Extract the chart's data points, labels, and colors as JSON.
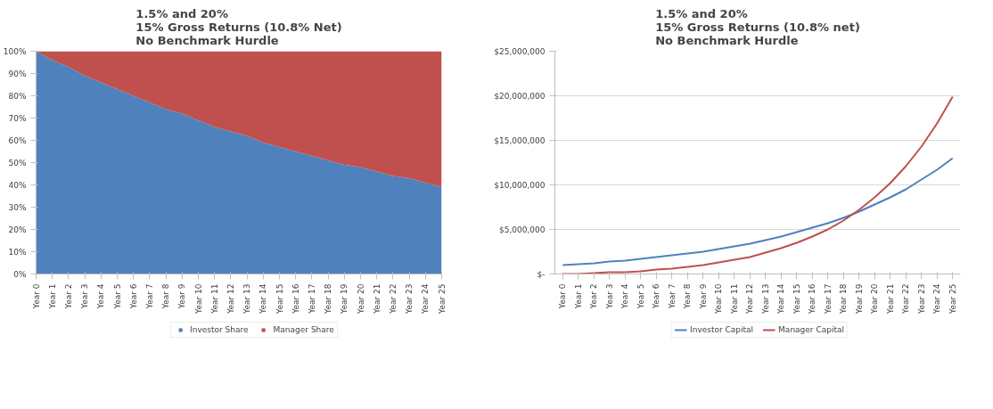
{
  "chart_data": [
    {
      "type": "area",
      "stacked": true,
      "title": "1.5% and 20%\n15% Gross Returns (10.8% Net)\nNo Benchmark Hurdle",
      "categories": [
        "Year 0",
        "Year 1",
        "Year 2",
        "Year 3",
        "Year 4",
        "Year 5",
        "Year 6",
        "Year 7",
        "Year 8",
        "Year 9",
        "Year 10",
        "Year 11",
        "Year 12",
        "Year 13",
        "Year 14",
        "Year 15",
        "Year 16",
        "Year 17",
        "Year 18",
        "Year 19",
        "Year 20",
        "Year 21",
        "Year 22",
        "Year 23",
        "Year 24",
        "Year 25"
      ],
      "series": [
        {
          "name": "Investor Share",
          "color": "#4f81bd",
          "values": [
            100,
            96,
            93,
            89,
            86,
            83,
            80,
            77,
            74,
            72,
            69,
            66,
            64,
            62,
            59,
            57,
            55,
            53,
            51,
            49,
            48,
            46,
            44,
            43,
            41,
            39
          ]
        },
        {
          "name": "Manager Share",
          "color": "#c0504d",
          "values": [
            0,
            4,
            7,
            11,
            14,
            17,
            20,
            23,
            26,
            28,
            31,
            34,
            36,
            38,
            41,
            43,
            45,
            47,
            49,
            51,
            52,
            54,
            56,
            57,
            59,
            61
          ]
        }
      ],
      "ylim": [
        0,
        100
      ],
      "yticks": [
        {
          "value": 0,
          "label": "0%"
        },
        {
          "value": 10,
          "label": "10%"
        },
        {
          "value": 20,
          "label": "20%"
        },
        {
          "value": 30,
          "label": "30%"
        },
        {
          "value": 40,
          "label": "40%"
        },
        {
          "value": 50,
          "label": "50%"
        },
        {
          "value": 60,
          "label": "60%"
        },
        {
          "value": 70,
          "label": "70%"
        },
        {
          "value": 80,
          "label": "80%"
        },
        {
          "value": 90,
          "label": "90%"
        },
        {
          "value": 100,
          "label": "100%"
        }
      ],
      "grid": false,
      "legend": "bottom"
    },
    {
      "type": "line",
      "title": "1.5% and 20%\n15% Gross Returns (10.8% net)\nNo Benchmark Hurdle",
      "categories": [
        "Year 0",
        "Year 1",
        "Year 2",
        "Year 3",
        "Year 4",
        "Year 5",
        "Year 6",
        "Year 7",
        "Year 8",
        "Year 9",
        "Year 10",
        "Year 11",
        "Year 12",
        "Year 13",
        "Year 14",
        "Year 15",
        "Year 16",
        "Year 17",
        "Year 18",
        "Year 19",
        "Year 20",
        "Year 21",
        "Year 22",
        "Year 23",
        "Year 24",
        "Year 25"
      ],
      "series": [
        {
          "name": "Investor Capital",
          "color": "#4f81bd",
          "values": [
            1000000,
            1100000,
            1200000,
            1400000,
            1500000,
            1700000,
            1900000,
            2100000,
            2300000,
            2500000,
            2800000,
            3100000,
            3400000,
            3800000,
            4200000,
            4700000,
            5200000,
            5700000,
            6300000,
            7000000,
            7800000,
            8600000,
            9500000,
            10600000,
            11700000,
            13000000
          ]
        },
        {
          "name": "Manager Capital",
          "color": "#c0504d",
          "values": [
            0,
            0,
            100000,
            200000,
            200000,
            300000,
            500000,
            600000,
            800000,
            1000000,
            1300000,
            1600000,
            1900000,
            2400000,
            2900000,
            3500000,
            4200000,
            5000000,
            6000000,
            7200000,
            8600000,
            10200000,
            12100000,
            14300000,
            16900000,
            19900000
          ]
        }
      ],
      "ylim": [
        0,
        25000000
      ],
      "yticks": [
        {
          "value": 0,
          "label": "$-"
        },
        {
          "value": 5000000,
          "label": "$5,000,000"
        },
        {
          "value": 10000000,
          "label": "$10,000,000"
        },
        {
          "value": 15000000,
          "label": "$15,000,000"
        },
        {
          "value": 20000000,
          "label": "$20,000,000"
        },
        {
          "value": 25000000,
          "label": "$25,000,000"
        }
      ],
      "grid": "y",
      "legend": "bottom",
      "marker": "none",
      "line_style": "solid"
    }
  ]
}
